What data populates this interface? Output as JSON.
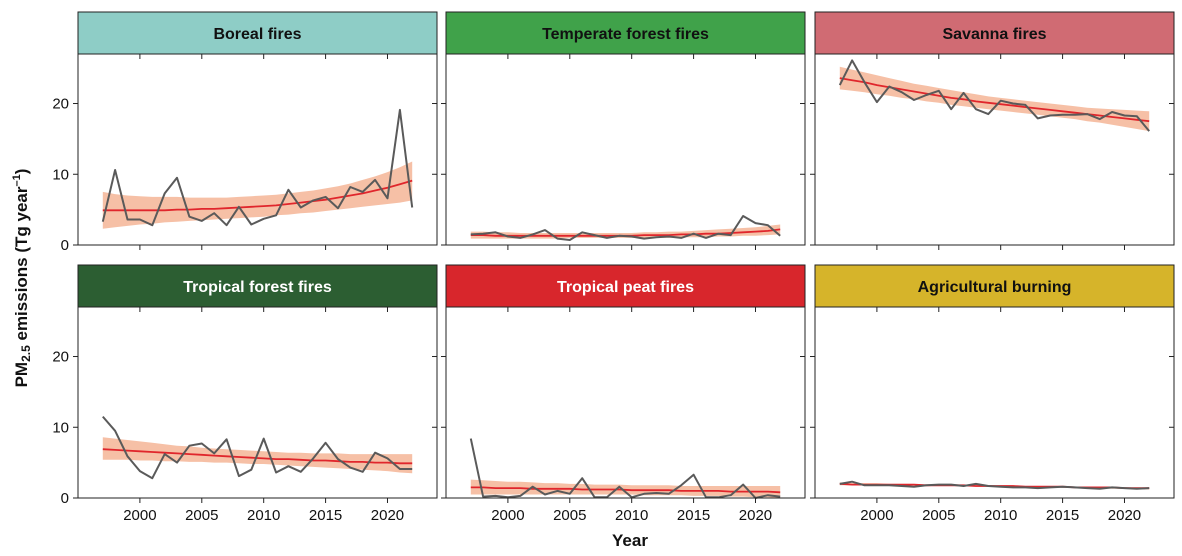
{
  "figure": {
    "ylabel_prefix": "PM",
    "ylabel_sub": "2.5",
    "ylabel_mid": " emissions (Tg year",
    "ylabel_sup": "–1",
    "ylabel_suffix": ")",
    "xlabel": "Year"
  },
  "chart_data": [
    {
      "type": "line",
      "title": "Boreal fires",
      "header_color": "#8ecdc6",
      "header_text_color": "#111111",
      "x": [
        1997,
        1998,
        1999,
        2000,
        2001,
        2002,
        2003,
        2004,
        2005,
        2006,
        2007,
        2008,
        2009,
        2010,
        2011,
        2012,
        2013,
        2014,
        2015,
        2016,
        2017,
        2018,
        2019,
        2020,
        2021,
        2022
      ],
      "values": [
        3.3,
        10.6,
        3.6,
        3.6,
        2.8,
        7.3,
        9.5,
        4.0,
        3.4,
        4.5,
        2.8,
        5.4,
        2.9,
        3.7,
        4.2,
        7.8,
        5.3,
        6.3,
        6.8,
        5.2,
        8.2,
        7.5,
        9.2,
        6.6,
        19.1,
        5.3
      ],
      "trend": [
        4.9,
        4.9,
        4.9,
        4.9,
        4.9,
        4.9,
        5.0,
        5.0,
        5.1,
        5.1,
        5.2,
        5.3,
        5.4,
        5.5,
        5.6,
        5.8,
        6.0,
        6.2,
        6.4,
        6.7,
        7.0,
        7.3,
        7.7,
        8.1,
        8.6,
        9.1
      ],
      "trend_band": [
        [
          2.3,
          7.5
        ],
        [
          2.5,
          7.2
        ],
        [
          2.7,
          7.0
        ],
        [
          2.9,
          6.9
        ],
        [
          3.0,
          6.8
        ],
        [
          3.2,
          6.8
        ],
        [
          3.3,
          6.8
        ],
        [
          3.4,
          6.7
        ],
        [
          3.5,
          6.7
        ],
        [
          3.6,
          6.7
        ],
        [
          3.7,
          6.7
        ],
        [
          3.8,
          6.8
        ],
        [
          3.9,
          6.9
        ],
        [
          4.0,
          7.0
        ],
        [
          4.2,
          7.1
        ],
        [
          4.3,
          7.3
        ],
        [
          4.5,
          7.5
        ],
        [
          4.6,
          7.7
        ],
        [
          4.8,
          8.0
        ],
        [
          5.0,
          8.3
        ],
        [
          5.2,
          8.7
        ],
        [
          5.4,
          9.2
        ],
        [
          5.6,
          9.7
        ],
        [
          5.8,
          10.3
        ],
        [
          6.0,
          11.0
        ],
        [
          6.3,
          11.8
        ]
      ],
      "xlim": [
        1995,
        2024
      ],
      "ylim": [
        0,
        27
      ],
      "yticks": [
        0,
        10,
        20
      ],
      "xticks": [
        2000,
        2005,
        2010,
        2015,
        2020
      ],
      "show_xtick_labels": false,
      "show_ytick_labels": true
    },
    {
      "type": "line",
      "title": "Temperate forest fires",
      "header_color": "#40a24a",
      "header_text_color": "#111111",
      "x": [
        1997,
        1998,
        1999,
        2000,
        2001,
        2002,
        2003,
        2004,
        2005,
        2006,
        2007,
        2008,
        2009,
        2010,
        2011,
        2012,
        2013,
        2014,
        2015,
        2016,
        2017,
        2018,
        2019,
        2020,
        2021,
        2022
      ],
      "values": [
        1.5,
        1.6,
        1.8,
        1.2,
        1.0,
        1.5,
        2.1,
        0.9,
        0.7,
        1.8,
        1.4,
        1.0,
        1.3,
        1.2,
        0.9,
        1.1,
        1.2,
        1.0,
        1.6,
        1.0,
        1.6,
        1.4,
        4.1,
        3.1,
        2.8,
        1.3
      ],
      "trend": [
        1.4,
        1.4,
        1.3,
        1.3,
        1.3,
        1.3,
        1.3,
        1.3,
        1.3,
        1.3,
        1.3,
        1.3,
        1.3,
        1.3,
        1.4,
        1.4,
        1.4,
        1.5,
        1.5,
        1.6,
        1.6,
        1.7,
        1.8,
        1.9,
        2.0,
        2.2
      ],
      "trend_band": [
        [
          0.9,
          1.9
        ],
        [
          0.9,
          1.9
        ],
        [
          0.9,
          1.8
        ],
        [
          0.9,
          1.8
        ],
        [
          0.9,
          1.7
        ],
        [
          0.9,
          1.7
        ],
        [
          0.9,
          1.7
        ],
        [
          0.9,
          1.7
        ],
        [
          1.0,
          1.7
        ],
        [
          1.0,
          1.7
        ],
        [
          1.0,
          1.7
        ],
        [
          1.0,
          1.7
        ],
        [
          1.0,
          1.7
        ],
        [
          1.0,
          1.7
        ],
        [
          1.0,
          1.8
        ],
        [
          1.0,
          1.8
        ],
        [
          1.0,
          1.9
        ],
        [
          1.1,
          1.9
        ],
        [
          1.1,
          2.0
        ],
        [
          1.1,
          2.1
        ],
        [
          1.2,
          2.2
        ],
        [
          1.2,
          2.3
        ],
        [
          1.3,
          2.4
        ],
        [
          1.3,
          2.5
        ],
        [
          1.4,
          2.7
        ],
        [
          1.5,
          2.9
        ]
      ],
      "xlim": [
        1995,
        2024
      ],
      "ylim": [
        0,
        27
      ],
      "yticks": [
        0,
        10,
        20
      ],
      "xticks": [
        2000,
        2005,
        2010,
        2015,
        2020
      ],
      "show_xtick_labels": false,
      "show_ytick_labels": false
    },
    {
      "type": "line",
      "title": "Savanna fires",
      "header_color": "#d06b73",
      "header_text_color": "#111111",
      "x": [
        1997,
        1998,
        1999,
        2000,
        2001,
        2002,
        2003,
        2004,
        2005,
        2006,
        2007,
        2008,
        2009,
        2010,
        2011,
        2012,
        2013,
        2014,
        2015,
        2016,
        2017,
        2018,
        2019,
        2020,
        2021,
        2022
      ],
      "values": [
        22.6,
        26.1,
        23.0,
        20.2,
        22.4,
        21.6,
        20.5,
        21.2,
        21.8,
        19.2,
        21.5,
        19.2,
        18.5,
        20.4,
        20.0,
        19.8,
        17.9,
        18.3,
        18.4,
        18.4,
        18.5,
        17.8,
        18.8,
        18.3,
        18.2,
        16.1
      ],
      "trend": [
        23.6,
        23.3,
        23.0,
        22.6,
        22.3,
        22.0,
        21.7,
        21.4,
        21.1,
        20.8,
        20.6,
        20.3,
        20.1,
        19.9,
        19.7,
        19.5,
        19.3,
        19.1,
        18.9,
        18.7,
        18.5,
        18.3,
        18.1,
        17.9,
        17.7,
        17.5
      ],
      "trend_band": [
        [
          22.0,
          25.2
        ],
        [
          21.8,
          24.8
        ],
        [
          21.6,
          24.4
        ],
        [
          21.3,
          24.0
        ],
        [
          21.1,
          23.6
        ],
        [
          20.8,
          23.2
        ],
        [
          20.6,
          22.8
        ],
        [
          20.3,
          22.5
        ],
        [
          20.1,
          22.2
        ],
        [
          19.8,
          21.9
        ],
        [
          19.6,
          21.6
        ],
        [
          19.4,
          21.3
        ],
        [
          19.2,
          21.0
        ],
        [
          19.0,
          20.8
        ],
        [
          18.8,
          20.6
        ],
        [
          18.6,
          20.4
        ],
        [
          18.4,
          20.2
        ],
        [
          18.2,
          20.0
        ],
        [
          18.0,
          19.8
        ],
        [
          17.8,
          19.6
        ],
        [
          17.5,
          19.4
        ],
        [
          17.3,
          19.3
        ],
        [
          17.0,
          19.2
        ],
        [
          16.7,
          19.1
        ],
        [
          16.4,
          19.0
        ],
        [
          16.1,
          18.9
        ]
      ],
      "xlim": [
        1995,
        2024
      ],
      "ylim": [
        0,
        27
      ],
      "yticks": [
        0,
        10,
        20
      ],
      "xticks": [
        2000,
        2005,
        2010,
        2015,
        2020
      ],
      "show_xtick_labels": false,
      "show_ytick_labels": false
    },
    {
      "type": "line",
      "title": "Tropical forest fires",
      "header_color": "#2c5e32",
      "header_text_color": "#ffffff",
      "x": [
        1997,
        1998,
        1999,
        2000,
        2001,
        2002,
        2003,
        2004,
        2005,
        2006,
        2007,
        2008,
        2009,
        2010,
        2011,
        2012,
        2013,
        2014,
        2015,
        2016,
        2017,
        2018,
        2019,
        2020,
        2021,
        2022
      ],
      "values": [
        11.5,
        9.5,
        5.9,
        3.8,
        2.8,
        6.2,
        5.0,
        7.4,
        7.7,
        6.3,
        8.3,
        3.1,
        4.0,
        8.4,
        3.6,
        4.5,
        3.7,
        5.6,
        7.8,
        5.5,
        4.3,
        3.7,
        6.4,
        5.6,
        4.1,
        4.1
      ],
      "trend": [
        6.9,
        6.8,
        6.7,
        6.6,
        6.5,
        6.4,
        6.3,
        6.2,
        6.1,
        6.0,
        5.9,
        5.8,
        5.7,
        5.6,
        5.5,
        5.5,
        5.4,
        5.3,
        5.3,
        5.2,
        5.1,
        5.1,
        5.0,
        5.0,
        4.9,
        4.9
      ],
      "trend_band": [
        [
          5.4,
          8.6
        ],
        [
          5.4,
          8.4
        ],
        [
          5.4,
          8.2
        ],
        [
          5.3,
          8.0
        ],
        [
          5.3,
          7.8
        ],
        [
          5.2,
          7.6
        ],
        [
          5.2,
          7.4
        ],
        [
          5.1,
          7.3
        ],
        [
          5.1,
          7.1
        ],
        [
          5.0,
          7.0
        ],
        [
          5.0,
          6.9
        ],
        [
          4.9,
          6.8
        ],
        [
          4.8,
          6.7
        ],
        [
          4.8,
          6.6
        ],
        [
          4.7,
          6.5
        ],
        [
          4.6,
          6.4
        ],
        [
          4.5,
          6.4
        ],
        [
          4.4,
          6.3
        ],
        [
          4.3,
          6.3
        ],
        [
          4.2,
          6.3
        ],
        [
          4.1,
          6.2
        ],
        [
          4.0,
          6.2
        ],
        [
          3.9,
          6.2
        ],
        [
          3.8,
          6.2
        ],
        [
          3.6,
          6.2
        ],
        [
          3.5,
          6.2
        ]
      ],
      "xlim": [
        1995,
        2024
      ],
      "ylim": [
        0,
        27
      ],
      "yticks": [
        0,
        10,
        20
      ],
      "xticks": [
        2000,
        2005,
        2010,
        2015,
        2020
      ],
      "show_xtick_labels": true,
      "show_ytick_labels": true
    },
    {
      "type": "line",
      "title": "Tropical peat fires",
      "header_color": "#d8262c",
      "header_text_color": "#ffffff",
      "x": [
        1997,
        1998,
        1999,
        2000,
        2001,
        2002,
        2003,
        2004,
        2005,
        2006,
        2007,
        2008,
        2009,
        2010,
        2011,
        2012,
        2013,
        2014,
        2015,
        2016,
        2017,
        2018,
        2019,
        2020,
        2021,
        2022
      ],
      "values": [
        8.4,
        0.2,
        0.3,
        0.1,
        0.3,
        1.6,
        0.5,
        1.0,
        0.6,
        2.8,
        0.1,
        0.1,
        1.6,
        0.1,
        0.6,
        0.7,
        0.6,
        1.8,
        3.3,
        0.1,
        0.1,
        0.4,
        1.9,
        0.0,
        0.4,
        0.2
      ],
      "trend": [
        1.5,
        1.5,
        1.4,
        1.4,
        1.4,
        1.3,
        1.3,
        1.3,
        1.3,
        1.2,
        1.2,
        1.2,
        1.2,
        1.1,
        1.1,
        1.1,
        1.1,
        1.0,
        1.0,
        1.0,
        1.0,
        0.9,
        0.9,
        0.9,
        0.9,
        0.8
      ],
      "trend_band": [
        [
          0.5,
          2.6
        ],
        [
          0.5,
          2.5
        ],
        [
          0.5,
          2.4
        ],
        [
          0.5,
          2.3
        ],
        [
          0.5,
          2.3
        ],
        [
          0.5,
          2.2
        ],
        [
          0.5,
          2.1
        ],
        [
          0.5,
          2.1
        ],
        [
          0.5,
          2.0
        ],
        [
          0.5,
          2.0
        ],
        [
          0.5,
          1.9
        ],
        [
          0.5,
          1.9
        ],
        [
          0.5,
          1.9
        ],
        [
          0.5,
          1.8
        ],
        [
          0.4,
          1.8
        ],
        [
          0.4,
          1.8
        ],
        [
          0.4,
          1.8
        ],
        [
          0.4,
          1.7
        ],
        [
          0.3,
          1.7
        ],
        [
          0.3,
          1.7
        ],
        [
          0.3,
          1.7
        ],
        [
          0.2,
          1.7
        ],
        [
          0.2,
          1.7
        ],
        [
          0.1,
          1.7
        ],
        [
          0.1,
          1.7
        ],
        [
          0.0,
          1.7
        ]
      ],
      "xlim": [
        1995,
        2024
      ],
      "ylim": [
        0,
        27
      ],
      "yticks": [
        0,
        10,
        20
      ],
      "xticks": [
        2000,
        2005,
        2010,
        2015,
        2020
      ],
      "show_xtick_labels": true,
      "show_ytick_labels": false
    },
    {
      "type": "line",
      "title": "Agricultural burning",
      "header_color": "#d6b42a",
      "header_text_color": "#111111",
      "x": [
        1997,
        1998,
        1999,
        2000,
        2001,
        2002,
        2003,
        2004,
        2005,
        2006,
        2007,
        2008,
        2009,
        2010,
        2011,
        2012,
        2013,
        2014,
        2015,
        2016,
        2017,
        2018,
        2019,
        2020,
        2021,
        2022
      ],
      "values": [
        2.0,
        2.3,
        1.8,
        1.8,
        1.8,
        1.7,
        1.6,
        1.8,
        1.9,
        1.9,
        1.7,
        2.0,
        1.7,
        1.6,
        1.5,
        1.5,
        1.4,
        1.5,
        1.6,
        1.5,
        1.4,
        1.3,
        1.5,
        1.4,
        1.3,
        1.4
      ],
      "trend": [
        2.0,
        1.9,
        1.9,
        1.9,
        1.9,
        1.9,
        1.9,
        1.8,
        1.8,
        1.8,
        1.8,
        1.7,
        1.7,
        1.7,
        1.7,
        1.6,
        1.6,
        1.6,
        1.6,
        1.5,
        1.5,
        1.5,
        1.5,
        1.4,
        1.4,
        1.4
      ],
      "trend_band": [
        [
          1.8,
          2.2
        ],
        [
          1.8,
          2.1
        ],
        [
          1.8,
          2.1
        ],
        [
          1.8,
          2.1
        ],
        [
          1.8,
          2.0
        ],
        [
          1.8,
          2.0
        ],
        [
          1.8,
          2.0
        ],
        [
          1.7,
          1.9
        ],
        [
          1.7,
          1.9
        ],
        [
          1.7,
          1.9
        ],
        [
          1.7,
          1.9
        ],
        [
          1.6,
          1.8
        ],
        [
          1.6,
          1.8
        ],
        [
          1.6,
          1.8
        ],
        [
          1.6,
          1.8
        ],
        [
          1.5,
          1.7
        ],
        [
          1.5,
          1.7
        ],
        [
          1.5,
          1.7
        ],
        [
          1.5,
          1.7
        ],
        [
          1.4,
          1.6
        ],
        [
          1.4,
          1.6
        ],
        [
          1.4,
          1.6
        ],
        [
          1.3,
          1.6
        ],
        [
          1.3,
          1.5
        ],
        [
          1.3,
          1.5
        ],
        [
          1.2,
          1.5
        ]
      ],
      "xlim": [
        1995,
        2024
      ],
      "ylim": [
        0,
        27
      ],
      "yticks": [
        0,
        10,
        20
      ],
      "xticks": [
        2000,
        2005,
        2010,
        2015,
        2020
      ],
      "show_xtick_labels": true,
      "show_ytick_labels": false
    }
  ],
  "colors": {
    "data_line": "#5a5a5a",
    "trend_line": "#e0262c",
    "trend_band": "#f4b596",
    "axis": "#222222"
  }
}
